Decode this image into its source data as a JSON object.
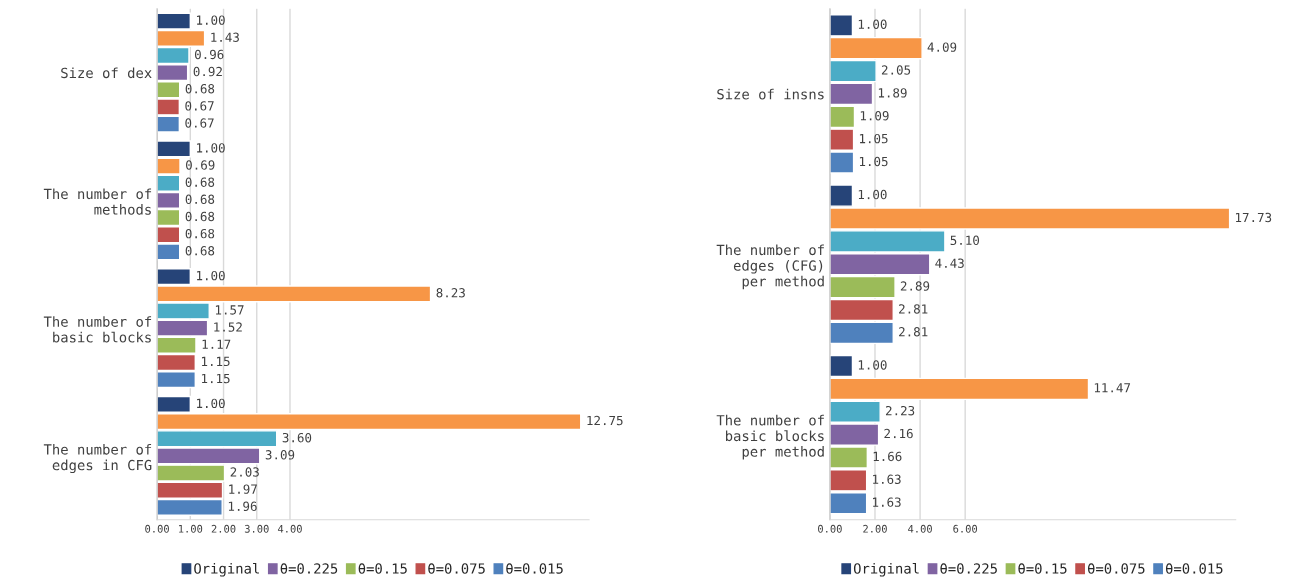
{
  "chart_data": [
    {
      "type": "bar",
      "orientation": "horizontal",
      "categories": [
        "Size of dex",
        "The number of\nmethods",
        "The number of\nbasic blocks",
        "The number of\nedges in CFG"
      ],
      "xlim": [
        0,
        13
      ],
      "xticks": [
        {
          "value": 0,
          "label": "0.00"
        },
        {
          "value": 1,
          "label": "1.00"
        },
        {
          "value": 2,
          "label": "2.00"
        },
        {
          "value": 3,
          "label": "3.00"
        },
        {
          "value": 4,
          "label": "4.00"
        }
      ],
      "grid": "x",
      "legend": "bottom",
      "series": [
        {
          "name": "Original",
          "color": "#264478",
          "values": [
            1.0,
            1.0,
            1.0,
            1.0
          ],
          "value_labels": [
            "1.00",
            "1.00",
            "1.00",
            "1.00"
          ]
        },
        {
          "color": "#f79646",
          "values": [
            1.43,
            0.69,
            8.23,
            12.75
          ],
          "value_labels": [
            "1.43",
            "0.69",
            "8.23",
            "12.75"
          ]
        },
        {
          "color": "#4bacc6",
          "values": [
            0.96,
            0.68,
            1.57,
            3.6
          ],
          "value_labels": [
            "0.96",
            "0.68",
            "1.57",
            "3.60"
          ]
        },
        {
          "name": "θ=0.225",
          "color": "#8064a2",
          "values": [
            0.92,
            0.68,
            1.52,
            3.09
          ],
          "value_labels": [
            "0.92",
            "0.68",
            "1.52",
            "3.09"
          ]
        },
        {
          "name": "θ=0.15",
          "color": "#9bbb59",
          "values": [
            0.68,
            0.68,
            1.17,
            2.03
          ],
          "value_labels": [
            "0.68",
            "0.68",
            "1.17",
            "2.03"
          ]
        },
        {
          "name": "θ=0.075",
          "color": "#c0504d",
          "values": [
            0.67,
            0.68,
            1.15,
            1.97
          ],
          "value_labels": [
            "0.67",
            "0.68",
            "1.15",
            "1.97"
          ]
        },
        {
          "name": "θ=0.015",
          "color": "#4f81bd",
          "values": [
            0.67,
            0.68,
            1.15,
            1.96
          ],
          "value_labels": [
            "0.67",
            "0.68",
            "1.15",
            "1.96"
          ]
        }
      ]
    },
    {
      "type": "bar",
      "orientation": "horizontal",
      "categories": [
        "Size of insns",
        "The number of\nedges (CFG)\nper method",
        "The number of\nbasic blocks\nper method"
      ],
      "xlim": [
        0,
        18
      ],
      "xticks": [
        {
          "value": 0,
          "label": "0.00"
        },
        {
          "value": 2,
          "label": "2.00"
        },
        {
          "value": 4,
          "label": "4.00"
        },
        {
          "value": 6,
          "label": "6.00"
        }
      ],
      "grid": "x",
      "legend": "bottom",
      "series": [
        {
          "name": "Original",
          "color": "#264478",
          "values": [
            1.0,
            1.0,
            1.0
          ],
          "value_labels": [
            "1.00",
            "1.00",
            "1.00"
          ]
        },
        {
          "color": "#f79646",
          "values": [
            4.09,
            17.73,
            11.47
          ],
          "value_labels": [
            "4.09",
            "17.73",
            "11.47"
          ]
        },
        {
          "color": "#4bacc6",
          "values": [
            2.05,
            5.1,
            2.23
          ],
          "value_labels": [
            "2.05",
            "5.10",
            "2.23"
          ]
        },
        {
          "name": "θ=0.225",
          "color": "#8064a2",
          "values": [
            1.89,
            4.43,
            2.16
          ],
          "value_labels": [
            "1.89",
            "4.43",
            "2.16"
          ]
        },
        {
          "name": "θ=0.15",
          "color": "#9bbb59",
          "values": [
            1.09,
            2.89,
            1.66
          ],
          "value_labels": [
            "1.09",
            "2.89",
            "1.66"
          ]
        },
        {
          "name": "θ=0.075",
          "color": "#c0504d",
          "values": [
            1.05,
            2.81,
            1.63
          ],
          "value_labels": [
            "1.05",
            "2.81",
            "1.63"
          ]
        },
        {
          "name": "θ=0.015",
          "color": "#4f81bd",
          "values": [
            1.05,
            2.81,
            1.63
          ],
          "value_labels": [
            "1.05",
            "2.81",
            "1.63"
          ]
        }
      ]
    }
  ]
}
